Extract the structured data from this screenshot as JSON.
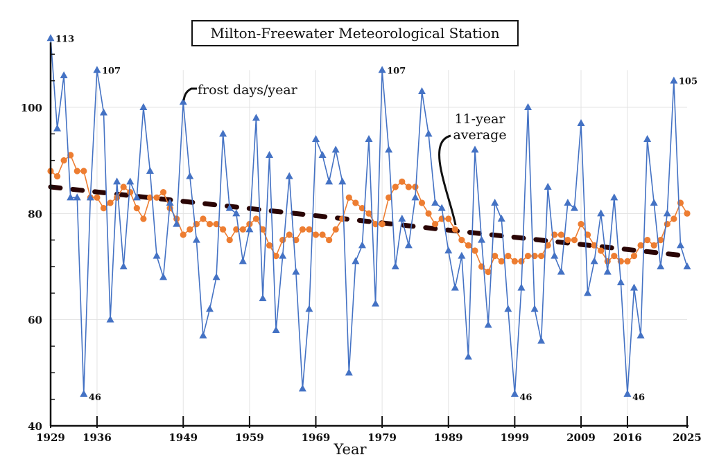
{
  "chart_data": {
    "type": "line",
    "title": "Milton-Freewater Meteorological Station",
    "xlabel": "Year",
    "ylabel": "",
    "ylim": [
      40,
      113
    ],
    "xlim": [
      1929,
      2025
    ],
    "grid": true,
    "x_ticks": [
      1929,
      1936,
      1949,
      1959,
      1969,
      1979,
      1989,
      1999,
      2009,
      2016,
      2025
    ],
    "y_ticks": [
      40,
      60,
      80,
      100
    ],
    "x_start": 1929,
    "series": [
      {
        "name": "frost days/year",
        "color": "#4472c4",
        "marker": "triangle",
        "values": [
          113,
          96,
          106,
          83,
          83,
          46,
          83,
          107,
          99,
          60,
          86,
          70,
          86,
          83,
          100,
          88,
          72,
          68,
          82,
          78,
          101,
          87,
          75,
          57,
          62,
          68,
          95,
          81,
          80,
          71,
          77,
          98,
          64,
          91,
          58,
          72,
          87,
          69,
          47,
          62,
          94,
          91,
          86,
          92,
          86,
          50,
          71,
          74,
          94,
          63,
          107,
          92,
          70,
          79,
          74,
          83,
          103,
          95,
          82,
          81,
          73,
          66,
          72,
          53,
          92,
          75,
          59,
          82,
          79,
          62,
          46,
          66,
          100,
          62,
          56,
          85,
          72,
          69,
          82,
          81,
          97,
          65,
          71,
          80,
          69,
          83,
          67,
          46,
          66,
          57,
          94,
          82,
          70,
          80,
          105,
          74,
          70
        ]
      },
      {
        "name": "11-year average",
        "color": "#ed7d31",
        "marker": "circle",
        "values": [
          88,
          87,
          90,
          91,
          88,
          88,
          83,
          83,
          81,
          82,
          83,
          85,
          84,
          81,
          79,
          83,
          83,
          84,
          81,
          79,
          76,
          77,
          78,
          79,
          78,
          78,
          77,
          75,
          77,
          77,
          78,
          79,
          77,
          74,
          72,
          75,
          76,
          75,
          77,
          77,
          76,
          76,
          75,
          77,
          79,
          83,
          82,
          81,
          80,
          78,
          78,
          83,
          85,
          86,
          85,
          85,
          82,
          80,
          78,
          79,
          79,
          77,
          75,
          74,
          73,
          70,
          69,
          72,
          71,
          72,
          71,
          71,
          72,
          72,
          72,
          74,
          76,
          76,
          75,
          75,
          78,
          76,
          74,
          73,
          71,
          72,
          71,
          71,
          72,
          74,
          75,
          74,
          75,
          78,
          79,
          82,
          80
        ]
      },
      {
        "type": "trend",
        "color": "#2a0505",
        "style": "dashed",
        "start": [
          1929,
          85
        ],
        "end": [
          2025,
          72
        ]
      }
    ],
    "annotations": [
      {
        "year": 1929,
        "value": 113,
        "text": "113"
      },
      {
        "year": 1936,
        "value": 107,
        "text": "107"
      },
      {
        "year": 1979,
        "value": 107,
        "text": "107"
      },
      {
        "year": 2023,
        "value": 105,
        "text": "105"
      },
      {
        "year": 1934,
        "value": 46,
        "text": "46"
      },
      {
        "year": 1999,
        "value": 46,
        "text": "46"
      },
      {
        "year": 2016,
        "value": 46,
        "text": "46"
      }
    ],
    "callouts": {
      "frost": "frost days/year",
      "avg_line1": "11-year",
      "avg_line2": "average"
    }
  }
}
